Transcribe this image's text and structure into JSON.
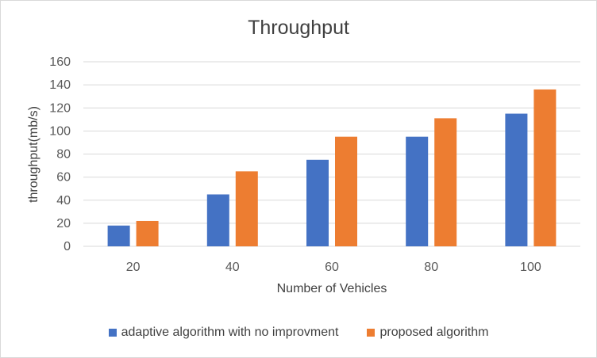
{
  "chart_data": {
    "type": "bar",
    "title": "Throughput",
    "xlabel": "Number of Vehicles",
    "ylabel": "throughput(mb/s)",
    "categories": [
      "20",
      "40",
      "60",
      "80",
      "100"
    ],
    "ylim": [
      0,
      160
    ],
    "yticks": [
      0,
      20,
      40,
      60,
      80,
      100,
      120,
      140,
      160
    ],
    "grid": true,
    "legend_position": "bottom",
    "series": [
      {
        "name": "adaptive algorithm with no improvment",
        "values": [
          18,
          45,
          75,
          95,
          115
        ],
        "color": "#4472c4"
      },
      {
        "name": "proposed algorithm",
        "values": [
          22,
          65,
          95,
          111,
          136
        ],
        "color": "#ed7d31"
      }
    ]
  }
}
